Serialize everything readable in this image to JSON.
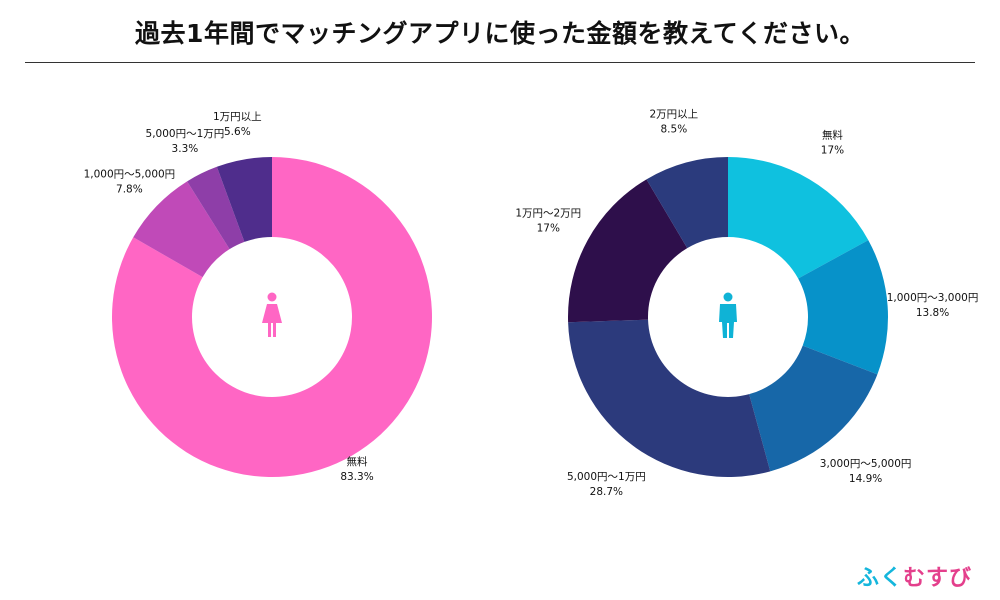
{
  "title": "過去1年間でマッチングアプリに使った金額を教えてください。",
  "brand": {
    "chars": [
      "ふ",
      "く",
      "む",
      "す",
      "び"
    ],
    "colors": [
      "#14b6dc",
      "#14b6dc",
      "#e43f8c",
      "#e43f8c",
      "#e43f8c"
    ]
  },
  "chart_data": [
    {
      "type": "pie",
      "subtype": "donut",
      "icon": "female-icon",
      "icon_color": "#ff66c4",
      "slices": [
        {
          "label": "無料",
          "value": 83.3,
          "value_text": "83.3%",
          "color": "#ff66c4"
        },
        {
          "label": "1,000円〜5,000円",
          "value": 7.8,
          "value_text": "7.8%",
          "color": "#c04ab8"
        },
        {
          "label": "5,000円〜1万円",
          "value": 3.3,
          "value_text": "3.3%",
          "color": "#8e3ea8"
        },
        {
          "label": "1万円以上",
          "value": 5.6,
          "value_text": "5.6%",
          "color": "#4f2d8c"
        }
      ]
    },
    {
      "type": "pie",
      "subtype": "donut",
      "icon": "male-icon",
      "icon_color": "#0fb3d6",
      "slices": [
        {
          "label": "無料",
          "value": 17,
          "value_text": "17%",
          "color": "#0fc1df"
        },
        {
          "label": "1,000円〜3,000円",
          "value": 13.8,
          "value_text": "13.8%",
          "color": "#0792c9"
        },
        {
          "label": "3,000円〜5,000円",
          "value": 14.9,
          "value_text": "14.9%",
          "color": "#1767a8"
        },
        {
          "label": "5,000円〜1万円",
          "value": 28.7,
          "value_text": "28.7%",
          "color": "#2c3a7c"
        },
        {
          "label": "1万円〜2万円",
          "value": 17,
          "value_text": "17%",
          "color": "#2e0f4b"
        },
        {
          "label": "2万円以上",
          "value": 8.5,
          "value_text": "8.5%",
          "color": "#2b3b7d"
        }
      ]
    }
  ]
}
